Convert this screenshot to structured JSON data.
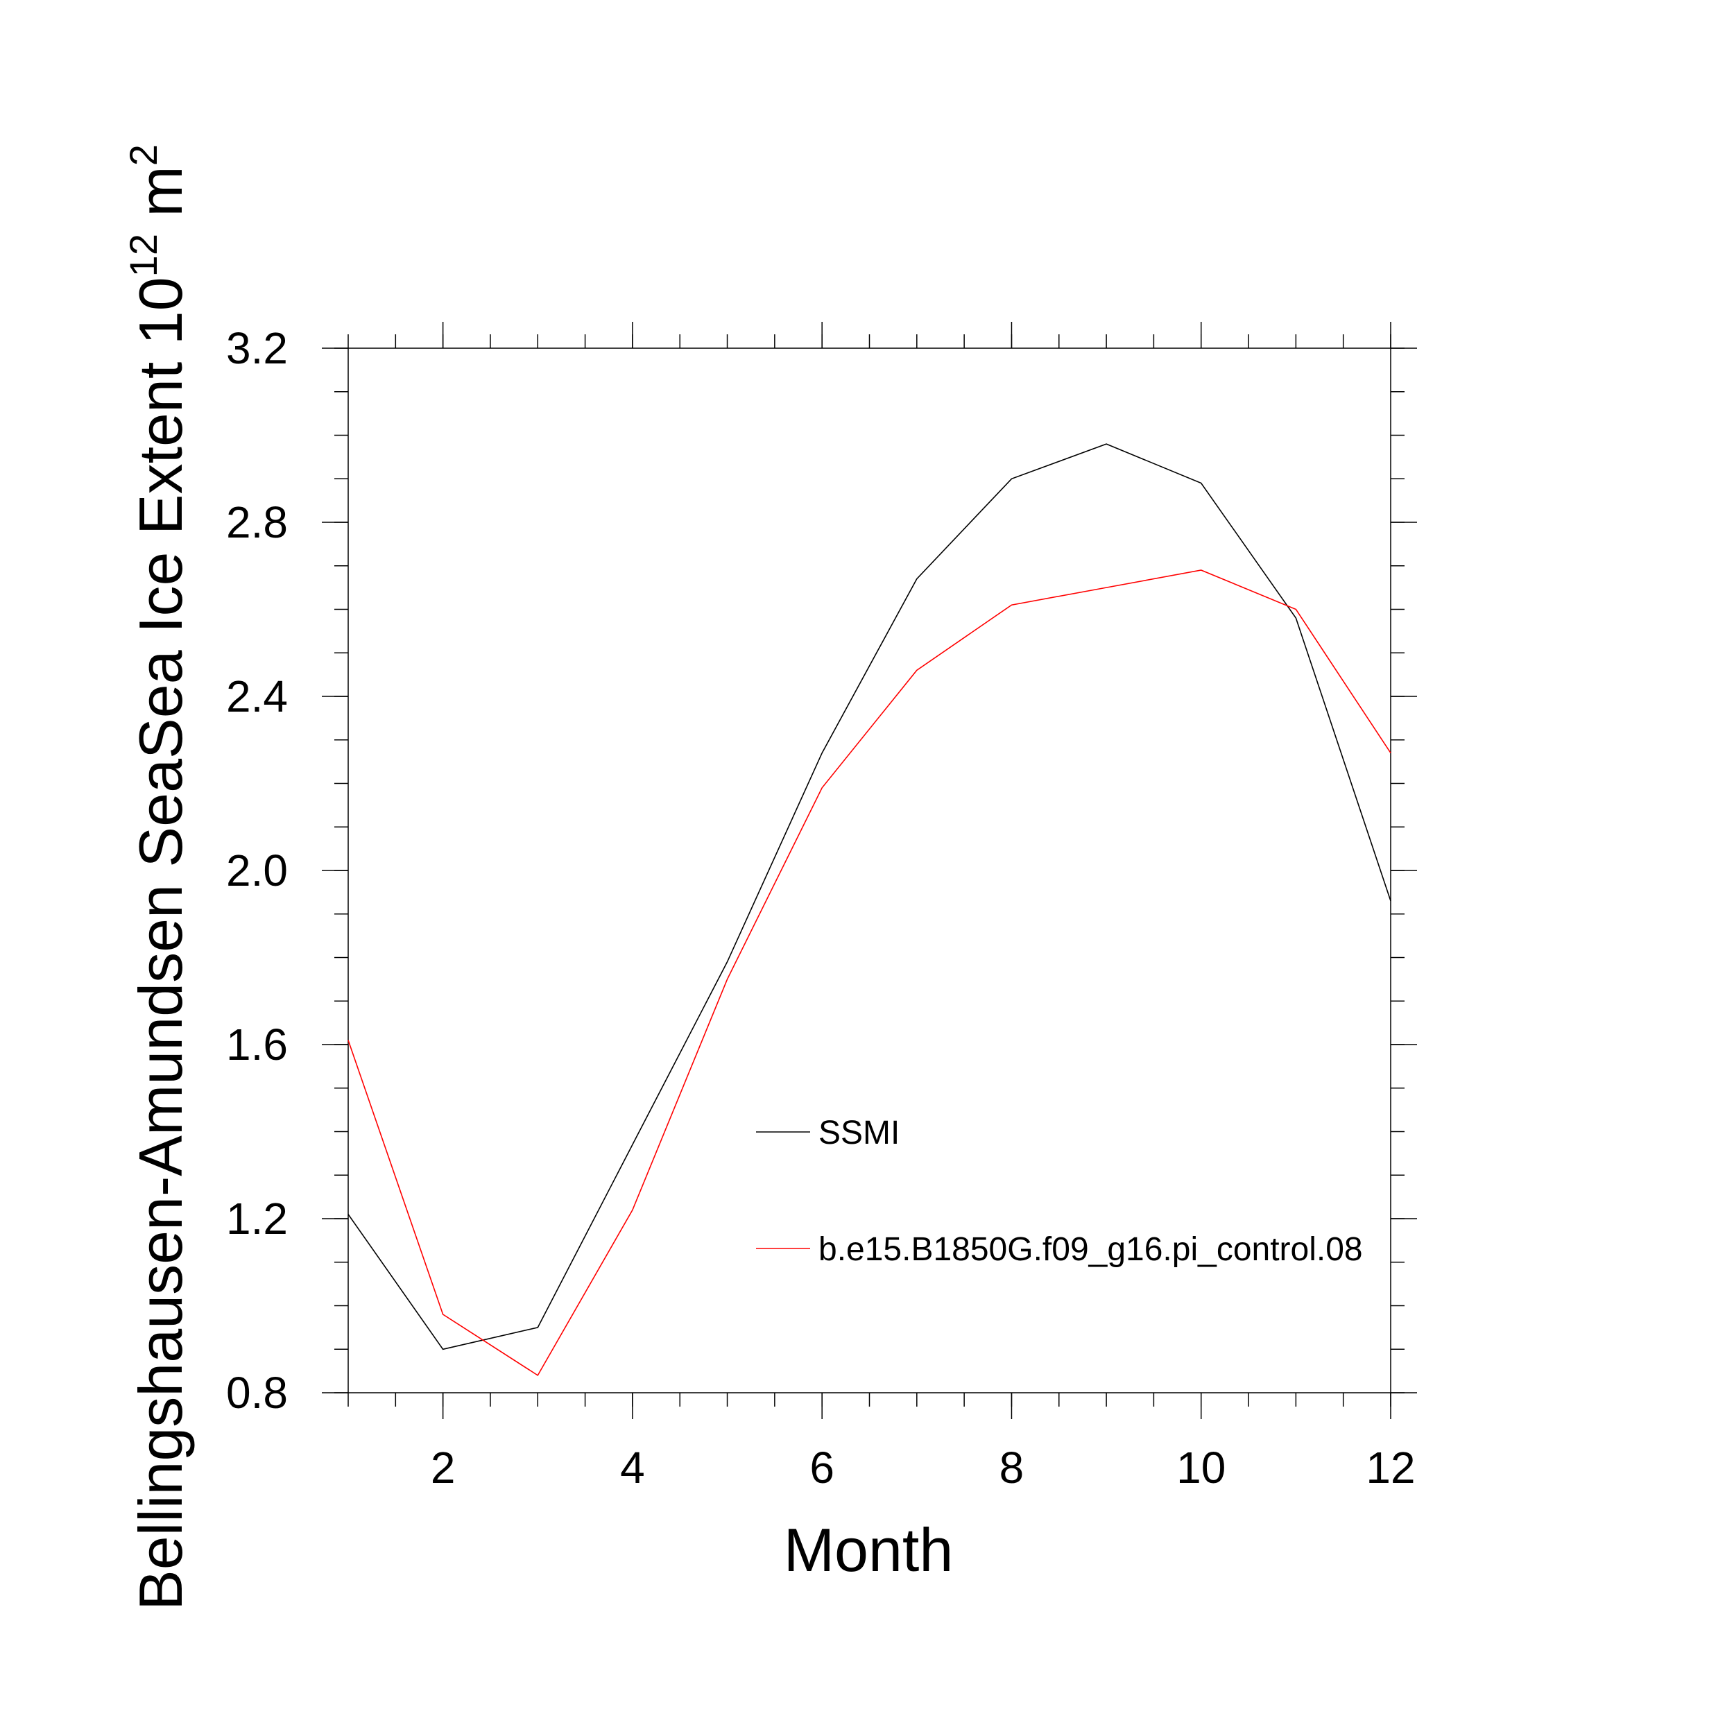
{
  "chart_data": {
    "type": "line",
    "xlabel": "Month",
    "ylabel": {
      "prefix": "Bellingshausen-Amundsen SeaSea Ice Extent 10",
      "exponent": "12",
      "unit": " m",
      "unit_exponent": "2"
    },
    "xlim": [
      1,
      12
    ],
    "ylim": [
      0.8,
      3.2
    ],
    "x_ticks": [
      2,
      4,
      6,
      8,
      10,
      12
    ],
    "x_tick_labels": [
      "2",
      "4",
      "6",
      "8",
      "10",
      "12"
    ],
    "y_ticks": [
      0.8,
      1.2,
      1.6,
      2.0,
      2.4,
      2.8,
      3.2
    ],
    "y_tick_labels": [
      "0.8",
      "1.2",
      "1.6",
      "2.0",
      "2.4",
      "2.8",
      "3.2"
    ],
    "grid": false,
    "legend_position": "center-right",
    "x": [
      1,
      2,
      3,
      4,
      5,
      6,
      7,
      8,
      9,
      10,
      11,
      12
    ],
    "series": [
      {
        "name": "SSMI",
        "color": "#000000",
        "values": [
          1.21,
          0.9,
          0.95,
          1.37,
          1.79,
          2.27,
          2.67,
          2.9,
          2.98,
          2.89,
          2.58,
          1.93
        ]
      },
      {
        "name": "b.e15.B1850G.f09_g16.pi_control.08",
        "color": "#ff0000",
        "values": [
          1.61,
          0.98,
          0.84,
          1.22,
          1.75,
          2.19,
          2.46,
          2.61,
          2.65,
          2.69,
          2.6,
          2.27
        ]
      }
    ]
  }
}
